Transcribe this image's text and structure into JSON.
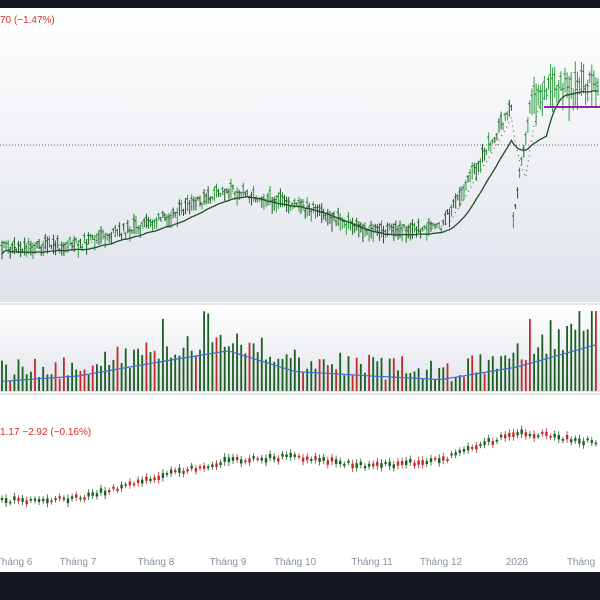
{
  "colors": {
    "frame": "#131722",
    "panel_bg": "#ffffff",
    "panel_gradient": "#dfe3ea",
    "up": "#1b5e20",
    "down": "#c62828",
    "bright_up": "#2e9e3e",
    "ma_line": "#1e4d2b",
    "ma_dots": "#4a4a4a",
    "volume_ma": "#3d6fd6",
    "support_line": "#8e24aa",
    "legend_text": "#d32f2f",
    "axis_text": "#8a8f98"
  },
  "price_panel": {
    "legend_text": "70 (−1.47%)"
  },
  "compare_panel": {
    "legend_text": "1.17  −2.92 (−0.16%)"
  },
  "x_axis": {
    "labels": [
      "Tháng 6",
      "Tháng 7",
      "Tháng 8",
      "Tháng 9",
      "Tháng 10",
      "Tháng 11",
      "Tháng 12",
      "2026",
      "Tháng"
    ]
  },
  "chart_data": [
    {
      "type": "ohlc",
      "panel": "price",
      "x": [
        "Tháng 6",
        "Tháng 7",
        "Tháng 8",
        "Tháng 9",
        "Tháng 10",
        "Tháng 11",
        "Tháng 12",
        "2026",
        "Tháng"
      ],
      "close_trend": [
        248,
        245,
        222,
        190,
        206,
        232,
        228,
        98,
        88
      ],
      "series": [
        {
          "name": "",
          "type": "ohlc"
        },
        {
          "name": "",
          "type": "line",
          "style": "solid"
        },
        {
          "name": "",
          "type": "line",
          "style": "dotted"
        }
      ],
      "reference_line": "dotted-horizontal",
      "support_line": "horizontal-purple"
    },
    {
      "type": "bar",
      "panel": "volume",
      "x": [
        "Tháng 6",
        "Tháng 7",
        "Tháng 8",
        "Tháng 9",
        "Tháng 10",
        "Tháng 11",
        "Tháng 12",
        "2026",
        "Tháng"
      ],
      "volume_ma_trend": [
        5,
        10,
        25,
        38,
        15,
        10,
        6,
        20,
        40
      ],
      "spikes": [
        "Tháng 8",
        "Tháng 9",
        "2026"
      ]
    },
    {
      "type": "candlestick",
      "panel": "compare",
      "x": [
        "Tháng 6",
        "Tháng 7",
        "Tháng 8",
        "Tháng 9",
        "Tháng 10",
        "Tháng 11",
        "Tháng 12",
        "2026",
        "Tháng"
      ],
      "close_trend": [
        10,
        12,
        30,
        45,
        48,
        40,
        45,
        70,
        62
      ]
    }
  ]
}
